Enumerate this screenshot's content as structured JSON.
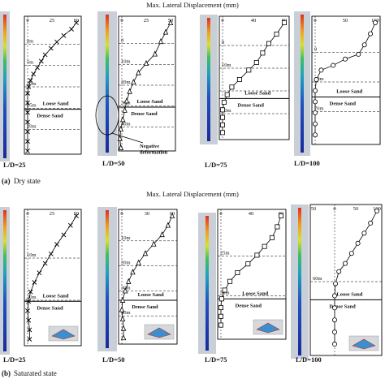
{
  "figure": {
    "header_label": "Max. Lateral Displacement (mm)",
    "panels": [
      {
        "id": "dry",
        "caption_letter": "(a)",
        "caption_text": "Dry state",
        "subplots": [
          {
            "ld_label": "L/D=25",
            "x_ticks": [
              "0",
              "25",
              "50"
            ],
            "x_range": [
              0,
              50
            ],
            "depth_labels": [
              "0m",
              "5m",
              "10m",
              "15m",
              "20m"
            ],
            "depth_range": [
              0,
              20
            ],
            "marker": "x",
            "profile": [
              [
                50,
                0
              ],
              [
                45,
                1
              ],
              [
                37,
                2
              ],
              [
                30,
                3
              ],
              [
                24,
                4
              ],
              [
                18,
                5
              ],
              [
                14,
                6
              ],
              [
                10,
                7
              ],
              [
                6,
                8
              ],
              [
                3,
                9
              ],
              [
                1,
                10
              ],
              [
                0,
                11
              ],
              [
                0,
                12.5
              ],
              [
                0,
                14
              ],
              [
                0,
                15.5
              ],
              [
                0,
                17
              ],
              [
                0,
                18.5
              ],
              [
                0,
                20
              ]
            ],
            "loose_sand_label": "Loose Sand",
            "dense_sand_label": "Dense Sand",
            "interface_depth": 13.5,
            "annotation": ""
          },
          {
            "ld_label": "L/D=50",
            "x_ticks": [
              "0",
              "25",
              "50"
            ],
            "x_range": [
              0,
              50
            ],
            "depth_labels": [
              "0",
              "10m",
              "20m",
              "30m",
              "40m"
            ],
            "depth_range": [
              0,
              40
            ],
            "marker": "triangle",
            "profile": [
              [
                50,
                0
              ],
              [
                45,
                3
              ],
              [
                40,
                6
              ],
              [
                34,
                10
              ],
              [
                25,
                13
              ],
              [
                17,
                16
              ],
              [
                12,
                19
              ],
              [
                8,
                22
              ],
              [
                5,
                25
              ],
              [
                3,
                28
              ],
              [
                1,
                31
              ],
              [
                -1,
                34
              ],
              [
                -2,
                37
              ],
              [
                -1,
                40
              ]
            ],
            "loose_sand_label": "Loose Sand",
            "dense_sand_label": "Dense Sand",
            "interface_depth": 27,
            "annotation": "Negative deformation"
          },
          {
            "ld_label": "L/D=75",
            "x_ticks": [
              "0",
              "40",
              "80"
            ],
            "x_range": [
              0,
              80
            ],
            "depth_labels": [
              "0",
              "10m",
              "",
              "50m"
            ],
            "depth_range": [
              0,
              60
            ],
            "marker": "square",
            "profile": [
              [
                80,
                0
              ],
              [
                70,
                6
              ],
              [
                60,
                11
              ],
              [
                52,
                16
              ],
              [
                44,
                21
              ],
              [
                34,
                25
              ],
              [
                22,
                30
              ],
              [
                12,
                34
              ],
              [
                6,
                38
              ],
              [
                2,
                42
              ],
              [
                0,
                46
              ],
              [
                0,
                50
              ],
              [
                0,
                54
              ],
              [
                0,
                58
              ]
            ],
            "loose_sand_label": "Loose Sand",
            "dense_sand_label": "Dense Sand",
            "interface_depth": 40,
            "annotation": ""
          },
          {
            "ld_label": "L/D=100",
            "x_ticks": [
              "0",
              "50",
              "100"
            ],
            "x_range": [
              0,
              100
            ],
            "depth_labels": [
              "0",
              "20m",
              "70m"
            ],
            "depth_range": [
              0,
              75
            ],
            "marker": "circle",
            "profile": [
              [
                100,
                0
              ],
              [
                92,
                7
              ],
              [
                82,
                14
              ],
              [
                72,
                20
              ],
              [
                50,
                23
              ],
              [
                30,
                27
              ],
              [
                10,
                30
              ],
              [
                2,
                36
              ],
              [
                0,
                43
              ],
              [
                0,
                50
              ],
              [
                0,
                57
              ],
              [
                0,
                64
              ],
              [
                0,
                71
              ]
            ],
            "loose_sand_label": "Loose Sand",
            "dense_sand_label": "Dense Sand",
            "interface_depth": 47,
            "annotation": ""
          }
        ]
      },
      {
        "id": "saturated",
        "caption_letter": "(b)",
        "caption_text": "Saturated state",
        "subplots": [
          {
            "ld_label": "L/D=25",
            "x_ticks": [
              "0",
              "25",
              "50"
            ],
            "x_range": [
              0,
              50
            ],
            "depth_labels": [
              "10m",
              "20m"
            ],
            "depth_range": [
              0,
              20
            ],
            "marker": "x",
            "profile": [
              [
                50,
                0
              ],
              [
                44,
                1.5
              ],
              [
                37,
                3
              ],
              [
                30,
                4.5
              ],
              [
                24,
                6
              ],
              [
                18,
                7.5
              ],
              [
                12,
                9
              ],
              [
                7,
                10.5
              ],
              [
                3,
                12
              ],
              [
                1,
                13.5
              ],
              [
                0,
                15
              ],
              [
                1,
                16.5
              ],
              [
                2,
                18
              ],
              [
                2,
                19.5
              ]
            ],
            "loose_sand_label": "Loose Sand",
            "dense_sand_label": "Dense Sand",
            "interface_depth": 13.5,
            "annotation": ""
          },
          {
            "ld_label": "L/D=50",
            "x_ticks": [
              "0",
              "30",
              "60"
            ],
            "x_range": [
              0,
              60
            ],
            "depth_labels": [
              "10m",
              "20m",
              "30m",
              "40m"
            ],
            "depth_range": [
              0,
              40
            ],
            "marker": "triangle",
            "profile": [
              [
                60,
                0
              ],
              [
                55,
                3
              ],
              [
                48,
                6
              ],
              [
                38,
                9
              ],
              [
                28,
                12
              ],
              [
                20,
                15
              ],
              [
                13,
                18
              ],
              [
                8,
                21
              ],
              [
                4,
                24
              ],
              [
                1,
                27
              ],
              [
                0,
                30
              ],
              [
                1,
                33
              ],
              [
                2,
                36
              ],
              [
                2,
                39
              ]
            ],
            "loose_sand_label": "Loose Sand",
            "dense_sand_label": "Dense Sand",
            "interface_depth": 27,
            "annotation": ""
          },
          {
            "ld_label": "L/D=75",
            "x_ticks": [
              "0",
              "40",
              "80"
            ],
            "x_range": [
              0,
              80
            ],
            "depth_labels": [
              "25m",
              "50m"
            ],
            "depth_range": [
              0,
              55
            ],
            "marker": "square",
            "profile": [
              [
                80,
                0
              ],
              [
                75,
                5
              ],
              [
                68,
                10
              ],
              [
                58,
                14
              ],
              [
                48,
                18
              ],
              [
                36,
                22
              ],
              [
                22,
                26
              ],
              [
                12,
                30
              ],
              [
                5,
                34
              ],
              [
                1,
                38
              ],
              [
                0,
                42
              ],
              [
                0,
                46
              ],
              [
                0,
                50
              ]
            ],
            "loose_sand_label": "Loose Sand",
            "dense_sand_label": "Dense Sand",
            "interface_depth": 38,
            "annotation": ""
          },
          {
            "ld_label": "L/D=100",
            "x_ticks": [
              "50",
              "0",
              "50",
              "100"
            ],
            "x_range": [
              -50,
              100
            ],
            "depth_labels": [
              "60m"
            ],
            "depth_range": [
              0,
              70
            ],
            "marker": "circle",
            "profile": [
              [
                100,
                0
              ],
              [
                85,
                6
              ],
              [
                70,
                11
              ],
              [
                55,
                16
              ],
              [
                40,
                21
              ],
              [
                25,
                26
              ],
              [
                10,
                30
              ],
              [
                2,
                36
              ],
              [
                0,
                42
              ],
              [
                0,
                48
              ],
              [
                0,
                54
              ],
              [
                0,
                60
              ],
              [
                0,
                66
              ]
            ],
            "loose_sand_label": "Loose Sand",
            "dense_sand_label": "Dense Sand",
            "interface_depth": 44,
            "annotation": ""
          }
        ]
      }
    ]
  }
}
